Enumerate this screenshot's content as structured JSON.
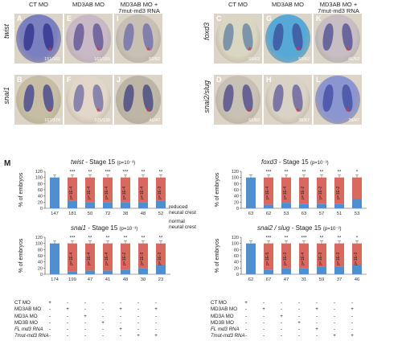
{
  "headers": {
    "left": [
      "CT MO",
      "MD3AB MO",
      "MD3AB MO +\n7mut-md3 RNA"
    ],
    "right": [
      "CT MO",
      "MD3AB MO",
      "MD3AB MO +\n7mut-md3 RNA"
    ]
  },
  "genes": {
    "r1l": "twist",
    "r2l": "snai1",
    "r1r": "foxd3",
    "r2r": "snai2/slug"
  },
  "panels": [
    {
      "id": "A",
      "count": "151/161",
      "color": "#7a7fc0",
      "stripe": "#2f2e8a"
    },
    {
      "id": "E",
      "count": "161/181",
      "color": "#c9b9c7",
      "stripe": "#5a4f93"
    },
    {
      "id": "I",
      "count": "52/52",
      "color": "#c8c0b5",
      "stripe": "#6a6aa8"
    },
    {
      "id": "C",
      "count": "59/63",
      "color": "#d9d6c2",
      "stripe": "#5e7da0"
    },
    {
      "id": "G",
      "count": "53/62",
      "color": "#56a9d6",
      "stripe": "#3e4c9a"
    },
    {
      "id": "K",
      "count": "41/53",
      "color": "#c6bec3",
      "stripe": "#4a4a90"
    },
    {
      "id": "B",
      "count": "167/174",
      "color": "#c6bda4",
      "stripe": "#3b3f8d"
    },
    {
      "id": "F",
      "count": "105/138",
      "color": "#e2d7c8",
      "stripe": "#6c6aa3"
    },
    {
      "id": "J",
      "count": "41/47",
      "color": "#bdb6a6",
      "stripe": "#3c407f"
    },
    {
      "id": "D",
      "count": "61/62",
      "color": "#c8c1b5",
      "stripe": "#4a4388"
    },
    {
      "id": "H",
      "count": "38/67",
      "color": "#d9d2c6",
      "stripe": "#5c5898"
    },
    {
      "id": "L",
      "count": "39/47",
      "color": "#8b95cf",
      "stripe": "#3d4ba0"
    }
  ],
  "panel_mark": "*",
  "figure_label": "M",
  "legend": {
    "reduced": "reduced\nneural crest",
    "normal": "normal\nneural crest",
    "reduced_color": "#d9685e",
    "normal_color": "#4f8fd0"
  },
  "chart_data": [
    {
      "type": "bar",
      "title": "twist - Stage 15",
      "gene": "twist",
      "stage": "- Stage 15",
      "pval": "(p=10⁻³)",
      "ylabel": "% of embryos",
      "ylim": [
        0,
        120
      ],
      "yticks": [
        0,
        20,
        40,
        60,
        80,
        100,
        120
      ],
      "n": [
        "147",
        "181",
        "50",
        "72",
        "38",
        "48",
        "52"
      ],
      "reduced": [
        0,
        75,
        80,
        80,
        80,
        80,
        75
      ],
      "sig": [
        "",
        "***",
        "**",
        "***",
        "***",
        "**",
        "**"
      ],
      "bar_labels": [
        "",
        "p=1E-4",
        "p=1E-4",
        "p=1E-4",
        "p=1E-4",
        "p=1E-4",
        "p=1E-3"
      ]
    },
    {
      "type": "bar",
      "title": "foxd3 - Stage 15",
      "gene": "foxd3",
      "stage": "- Stage 15",
      "pval": "(p=10⁻³)",
      "ylabel": "% of embryos",
      "ylim": [
        0,
        120
      ],
      "yticks": [
        0,
        20,
        40,
        60,
        80,
        100,
        120
      ],
      "n": [
        "63",
        "62",
        "53",
        "63",
        "57",
        "51",
        "53"
      ],
      "reduced": [
        0,
        88,
        82,
        85,
        85,
        85,
        70
      ],
      "sig": [
        "",
        "***",
        "**",
        "**",
        "**",
        "**",
        "*"
      ],
      "bar_labels": [
        "",
        "p=1E-4",
        "p=1E-4",
        "p=1E-2",
        "p=1E-2",
        "p=1E-2",
        ""
      ]
    },
    {
      "type": "bar",
      "title": "snai1 - Stage 15",
      "gene": "snai1",
      "stage": "- Stage 15",
      "pval": "(p=10⁻³)",
      "ylabel": "% of embryos",
      "ylim": [
        0,
        120
      ],
      "yticks": [
        0,
        20,
        40,
        60,
        80,
        100,
        120
      ],
      "n": [
        "174",
        "199",
        "47",
        "41",
        "48",
        "30",
        "23"
      ],
      "reduced": [
        0,
        90,
        88,
        88,
        85,
        80,
        70
      ],
      "sig": [
        "",
        "***",
        "**",
        "**",
        "**",
        "**",
        "**"
      ],
      "bar_labels": [
        "",
        "p=1E-4",
        "p=1E-4",
        "p=1E-4",
        "p=1E-2",
        "p=1E-3",
        "p=1E-3"
      ]
    },
    {
      "type": "bar",
      "title": "snai2 / slug - Stage 15",
      "gene": "snai2 / slug",
      "stage": "- Stage 15",
      "pval": "(p=10⁻³)",
      "ylabel": "% of embryos",
      "ylim": [
        0,
        120
      ],
      "yticks": [
        0,
        20,
        40,
        60,
        80,
        100,
        120
      ],
      "n": [
        "62",
        "67",
        "47",
        "31",
        "59",
        "37",
        "46"
      ],
      "reduced": [
        0,
        85,
        80,
        80,
        75,
        75,
        70
      ],
      "sig": [
        "",
        "***",
        "**",
        "***",
        "**",
        "**",
        "*"
      ],
      "bar_labels": [
        "",
        "p=1E-5",
        "p=1E-3",
        "p=1E-4",
        "p=1E-3",
        "p=1E-3",
        "p=1E-3"
      ]
    }
  ],
  "table": {
    "rows": [
      "CT MO",
      "MD3AB MO",
      "MD3A MO",
      "MD3B MO",
      "FL md3 RNA",
      "7mut-md3 RNA"
    ],
    "marks": [
      [
        "+",
        "-",
        "-",
        "-",
        "-",
        "-",
        "-"
      ],
      [
        "-",
        "+",
        "-",
        "-",
        "+",
        "-",
        "+"
      ],
      [
        "-",
        "-",
        "+",
        "-",
        "-",
        "-",
        "-"
      ],
      [
        "-",
        "-",
        "-",
        "+",
        "-",
        "-",
        "-"
      ],
      [
        "-",
        "-",
        "-",
        "-",
        "+",
        "-",
        "-"
      ],
      [
        "-",
        "-",
        "-",
        "-",
        "-",
        "+",
        "+"
      ]
    ]
  }
}
